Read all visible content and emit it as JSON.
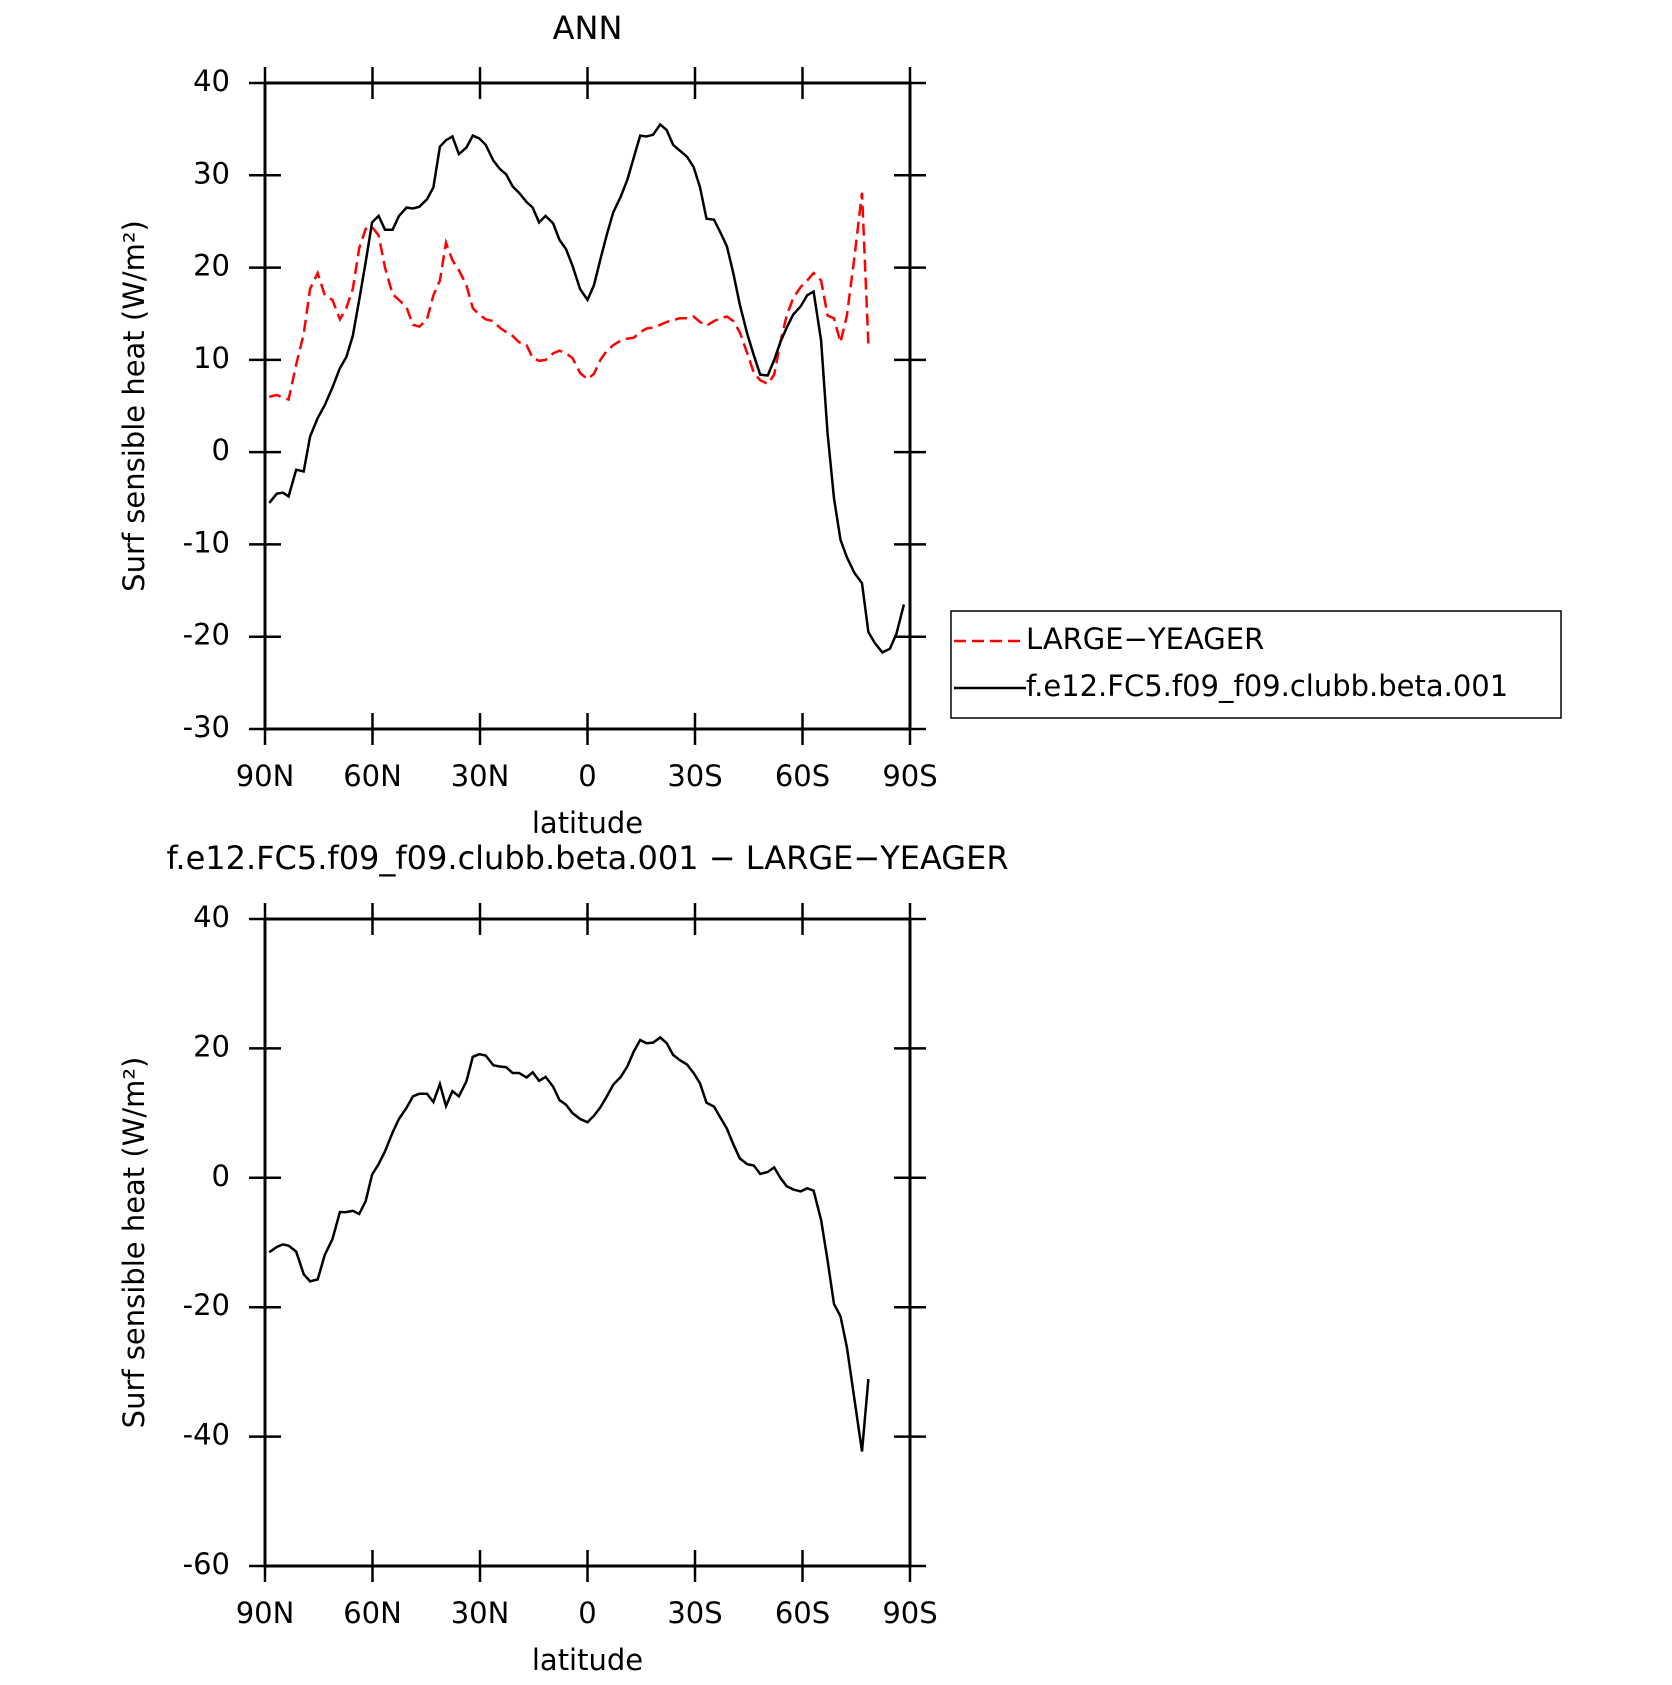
{
  "chart_data": [
    {
      "type": "line",
      "title": "ANN",
      "xlabel": "latitude",
      "ylabel": "Surf sensible heat (W/m²)",
      "xlim": [
        90,
        -90
      ],
      "xticks": [
        {
          "value": 90,
          "label": "90N"
        },
        {
          "value": 60,
          "label": "60N"
        },
        {
          "value": 30,
          "label": "30N"
        },
        0,
        {
          "value": -30,
          "label": "30S"
        },
        {
          "value": -60,
          "label": "60S"
        },
        {
          "value": -90,
          "label": "90S"
        }
      ],
      "ylim": [
        -30,
        40
      ],
      "yticks": [
        -30,
        -20,
        -10,
        0,
        10,
        20,
        30,
        40
      ],
      "legend": "right",
      "x": [
        88.8,
        86.7,
        85,
        83.4,
        81.3,
        79.2,
        77.4,
        75.3,
        73.3,
        71.2,
        69.1,
        67.3,
        65.5,
        63.7,
        61.9,
        60.1,
        58.3,
        56.5,
        54.4,
        52.6,
        50.5,
        48.7,
        46.9,
        44.8,
        43,
        41.2,
        39.5,
        37.7,
        35.9,
        33.8,
        32,
        30.2,
        28.4,
        26.3,
        24.5,
        22.7,
        20.9,
        19.1,
        17,
        15.3,
        13.5,
        11.7,
        9.6,
        7.8,
        6,
        4.2,
        2.1,
        0,
        -1.8,
        -3.6,
        -5.4,
        -7.2,
        -9.3,
        -11.1,
        -12.9,
        -14.7,
        -16.5,
        -18.3,
        -20.3,
        -22.1,
        -23.9,
        -25.7,
        -27.8,
        -29.6,
        -31.4,
        -33.2,
        -35.3,
        -37.1,
        -38.9,
        -40.7,
        -42.5,
        -44.6,
        -46.4,
        -48.2,
        -50.3,
        -52.1,
        -53.8,
        -55.6,
        -57.4,
        -59.5,
        -61.3,
        -63.1,
        -65.2,
        -67,
        -68.8,
        -70.6,
        -72.4,
        -74.5,
        -76.6,
        -78.4,
        -80.2,
        -82.3,
        -84.4,
        -86.2,
        -88.3
      ],
      "series": [
        {
          "name": "LARGE−YEAGER",
          "color": "#ff0000",
          "dash": true,
          "values": [
            6,
            6.2,
            5.9,
            5.7,
            9.5,
            12.8,
            17.7,
            19.4,
            17,
            16.5,
            14.4,
            15.6,
            17.7,
            22.1,
            24.2,
            24.4,
            23.5,
            20,
            17.1,
            16.5,
            15.7,
            13.8,
            13.6,
            14.4,
            17,
            18.6,
            22.7,
            20.8,
            19.7,
            18.1,
            15.6,
            14.9,
            14.4,
            14.2,
            13.5,
            13,
            12.6,
            11.9,
            11.6,
            10.2,
            9.9,
            10,
            10.7,
            11,
            10.7,
            10.2,
            8.6,
            7.9,
            8.5,
            10,
            11,
            11.6,
            12.1,
            12.3,
            12.4,
            13,
            13.4,
            13.5,
            13.8,
            14.1,
            14.3,
            14.5,
            14.5,
            14.7,
            14.1,
            13.7,
            14.2,
            14.5,
            14.7,
            14.2,
            13,
            10.7,
            8.6,
            7.8,
            7.4,
            8.4,
            11.9,
            14.8,
            16.7,
            17.9,
            18.6,
            19.4,
            18.6,
            14.8,
            14.5,
            11.9,
            14.8,
            21.2,
            28.1,
            11.6,
            null,
            null,
            null,
            null,
            null
          ]
        },
        {
          "name": "f.e12.FC5.f09_f09.clubb.beta.001",
          "color": "#000000",
          "dash": false,
          "values": [
            -5.5,
            -4.5,
            -4.4,
            -4.8,
            -1.9,
            -2.1,
            1.7,
            3.7,
            5.1,
            7,
            9.1,
            10.3,
            12.6,
            16.5,
            20.6,
            24.9,
            25.6,
            24.1,
            24.1,
            25.6,
            26.5,
            26.4,
            26.6,
            27.4,
            28.7,
            33.1,
            33.8,
            34.2,
            32.3,
            33,
            34.3,
            34,
            33.3,
            31.6,
            30.7,
            30.1,
            28.8,
            28.1,
            27.1,
            26.5,
            24.9,
            25.6,
            24.8,
            23,
            22,
            20.2,
            17.7,
            16.5,
            18.1,
            20.9,
            23.6,
            26,
            27.7,
            29.5,
            31.9,
            34.3,
            34.2,
            34.4,
            35.5,
            34.9,
            33.3,
            32.7,
            32,
            30.9,
            28.7,
            25.3,
            25.2,
            23.8,
            22.3,
            19.4,
            16,
            12.8,
            10.5,
            8.4,
            8.3,
            10,
            11.9,
            13.5,
            14.9,
            15.8,
            17,
            17.4,
            12.1,
            2,
            -5,
            -9.5,
            -11.4,
            -13.1,
            -14.2,
            -19.5,
            -20.7,
            -21.7,
            -21.3,
            -19.7,
            -16.5
          ]
        }
      ]
    },
    {
      "type": "line",
      "title": "f.e12.FC5.f09_f09.clubb.beta.001 − LARGE−YEAGER",
      "xlabel": "latitude",
      "ylabel": "Surf sensible heat (W/m²)",
      "xlim": [
        90,
        -90
      ],
      "xticks": [
        {
          "value": 90,
          "label": "90N"
        },
        {
          "value": 60,
          "label": "60N"
        },
        {
          "value": 30,
          "label": "30N"
        },
        0,
        {
          "value": -30,
          "label": "30S"
        },
        {
          "value": -60,
          "label": "60S"
        },
        {
          "value": -90,
          "label": "90S"
        }
      ],
      "ylim": [
        -60,
        40
      ],
      "yticks": [
        -60,
        -40,
        -20,
        0,
        20,
        40
      ],
      "x": [
        88.8,
        86.7,
        85,
        83.4,
        81.3,
        79.2,
        77.4,
        75.3,
        73.3,
        71.2,
        69.1,
        67.3,
        65.5,
        63.7,
        61.9,
        60.1,
        58.3,
        56.5,
        54.4,
        52.6,
        50.5,
        48.7,
        46.9,
        44.8,
        43,
        41.2,
        39.5,
        37.7,
        35.9,
        33.8,
        32,
        30.2,
        28.4,
        26.3,
        24.5,
        22.7,
        20.9,
        19.1,
        17,
        15.3,
        13.5,
        11.7,
        9.6,
        7.8,
        6,
        4.2,
        2.1,
        0,
        -1.8,
        -3.6,
        -5.4,
        -7.2,
        -9.3,
        -11.1,
        -12.9,
        -14.7,
        -16.5,
        -18.3,
        -20.3,
        -22.1,
        -23.9,
        -25.7,
        -27.8,
        -29.6,
        -31.4,
        -33.2,
        -35.3,
        -37.1,
        -38.9,
        -40.7,
        -42.5,
        -44.6,
        -46.4,
        -48.2,
        -50.3,
        -52.1,
        -53.8,
        -55.6,
        -57.4,
        -59.5,
        -61.3,
        -63.1,
        -65.2,
        -67,
        -68.8,
        -70.6,
        -72.4,
        -74.5,
        -76.6,
        -78.4,
        -80.2,
        -82.3,
        -84.4,
        -86.2,
        -88.3
      ],
      "color": "#000000",
      "values": [
        -11.5,
        -10.7,
        -10.3,
        -10.5,
        -11.4,
        -14.9,
        -16,
        -15.7,
        -11.9,
        -9.5,
        -5.3,
        -5.3,
        -5.1,
        -5.6,
        -3.6,
        0.5,
        2.1,
        4.1,
        7,
        9.1,
        10.8,
        12.6,
        13,
        13,
        11.7,
        14.5,
        11.1,
        13.4,
        12.6,
        14.9,
        18.7,
        19.1,
        18.9,
        17.4,
        17.2,
        17.1,
        16.2,
        16.2,
        15.5,
        16.3,
        15,
        15.6,
        14.1,
        12,
        11.3,
        10,
        9.1,
        8.6,
        9.6,
        10.9,
        12.6,
        14.4,
        15.6,
        17.2,
        19.5,
        21.3,
        20.8,
        20.9,
        21.7,
        20.8,
        19,
        18.2,
        17.5,
        16.2,
        14.6,
        11.6,
        11,
        9.3,
        7.6,
        5.2,
        3,
        2.1,
        1.9,
        0.6,
        0.9,
        1.6,
        0,
        -1.3,
        -1.8,
        -2.1,
        -1.6,
        -2,
        -6.5,
        -12.8,
        -19.5,
        -21.4,
        -26.2,
        -34.3,
        -42.3,
        -31.1,
        null,
        null,
        null,
        null,
        null
      ]
    }
  ]
}
